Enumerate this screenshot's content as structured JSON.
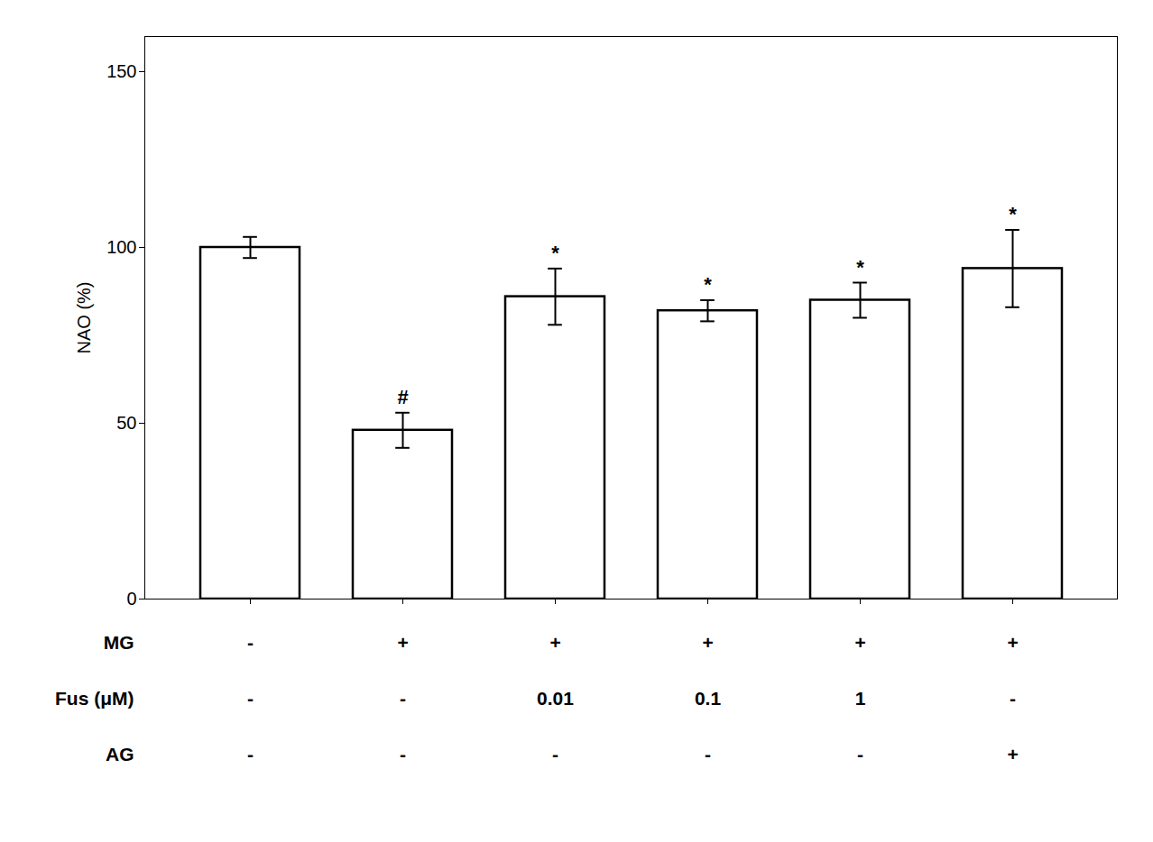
{
  "chart_data": {
    "type": "bar",
    "categories": [
      null,
      null,
      null,
      null,
      null,
      null
    ],
    "values": [
      100,
      48,
      86,
      82,
      85,
      94
    ],
    "errors": [
      3,
      5,
      8,
      3,
      5,
      11
    ],
    "significance": [
      null,
      "#",
      "*",
      "*",
      "*",
      "*"
    ],
    "color": "#ffffff",
    "ylabel": "NAO (%)",
    "ylim": [
      0,
      160
    ],
    "yticks": [
      0,
      50,
      100,
      150
    ],
    "tick_labels": "y",
    "table_rows": [
      "MG",
      "Fus (μM)",
      "AG"
    ],
    "table_data": [
      [
        "-",
        "+",
        "+",
        "+",
        "+",
        "+"
      ],
      [
        "-",
        "-",
        "0.01",
        "0.1",
        "1",
        "-"
      ],
      [
        "-",
        "-",
        "-",
        "-",
        "-",
        "+"
      ]
    ]
  }
}
